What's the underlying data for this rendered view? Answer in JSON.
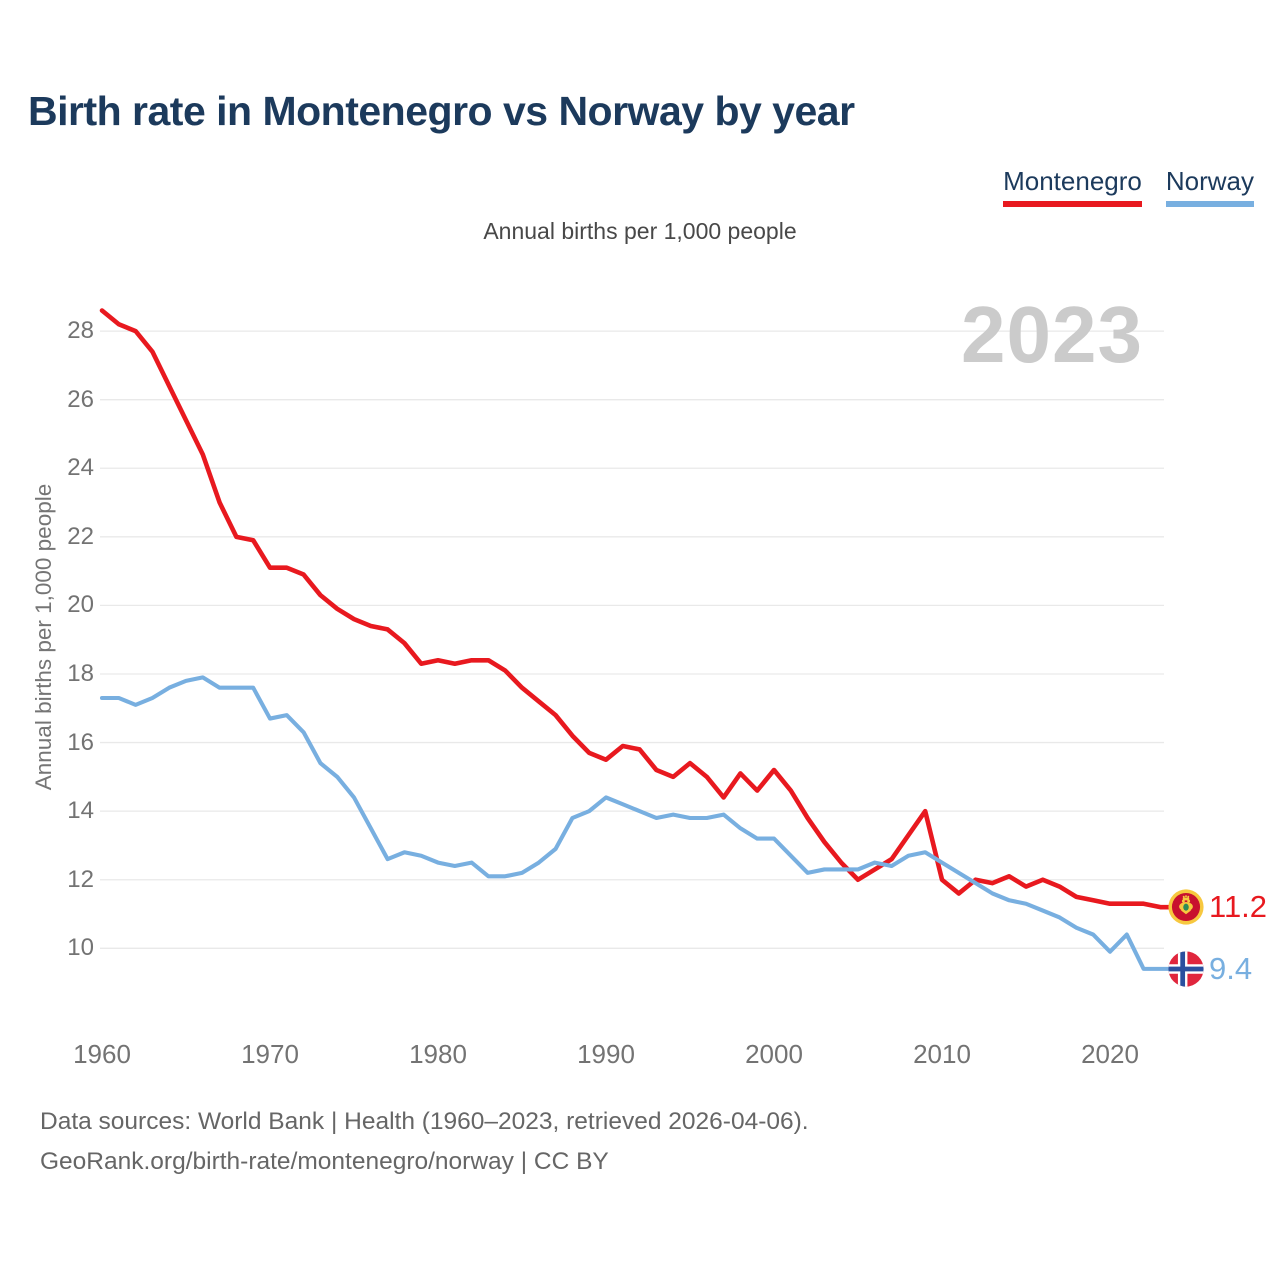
{
  "title": "Birth rate in Montenegro vs Norway by year",
  "subtitle": "Annual births per 1,000 people",
  "watermark": "2023",
  "legend": {
    "items": [
      {
        "label": "Montenegro",
        "color": "#e8191f"
      },
      {
        "label": "Norway",
        "color": "#78afe0"
      }
    ]
  },
  "y_axis": {
    "label": "Annual births per 1,000 people",
    "ticks": [
      28,
      26,
      24,
      22,
      20,
      18,
      16,
      14,
      12,
      10
    ]
  },
  "x_axis": {
    "ticks": [
      1960,
      1970,
      1980,
      1990,
      2000,
      2010,
      2020
    ]
  },
  "end_labels": {
    "montenegro": "11.2",
    "norway": "9.4"
  },
  "icons": {
    "montenegro_marker": "montenegro-flag",
    "norway_marker": "norway-flag"
  },
  "footer": {
    "line1": "Data sources: World Bank | Health (1960–2023, retrieved 2026-04-06).",
    "line2": "GeoRank.org/birth-rate/montenegro/norway | CC BY"
  },
  "chart_data": {
    "type": "line",
    "title": "Birth rate in Montenegro vs Norway by year",
    "ylabel": "Annual births per 1,000 people",
    "xlim": [
      1960,
      2023
    ],
    "ylim": [
      9,
      29
    ],
    "grid": "horizontal-only",
    "legend_position": "top-right",
    "x": [
      1960,
      1961,
      1962,
      1963,
      1964,
      1965,
      1966,
      1967,
      1968,
      1969,
      1970,
      1971,
      1972,
      1973,
      1974,
      1975,
      1976,
      1977,
      1978,
      1979,
      1980,
      1981,
      1982,
      1983,
      1984,
      1985,
      1986,
      1987,
      1988,
      1989,
      1990,
      1991,
      1992,
      1993,
      1994,
      1995,
      1996,
      1997,
      1998,
      1999,
      2000,
      2001,
      2002,
      2003,
      2004,
      2005,
      2006,
      2007,
      2008,
      2009,
      2010,
      2011,
      2012,
      2013,
      2014,
      2015,
      2016,
      2017,
      2018,
      2019,
      2020,
      2021,
      2022,
      2023
    ],
    "series": [
      {
        "name": "Montenegro",
        "color": "#e8191f",
        "end_value": 11.2,
        "values": [
          28.6,
          28.2,
          28.0,
          27.4,
          26.4,
          25.4,
          24.4,
          23.0,
          22.0,
          21.9,
          21.1,
          21.1,
          20.9,
          20.3,
          19.9,
          19.6,
          19.4,
          19.3,
          18.9,
          18.3,
          18.4,
          18.3,
          18.4,
          18.4,
          18.1,
          17.6,
          17.2,
          16.8,
          16.2,
          15.7,
          15.5,
          15.9,
          15.8,
          15.2,
          15.0,
          15.4,
          15.0,
          14.4,
          15.1,
          14.6,
          15.2,
          14.6,
          13.8,
          13.1,
          12.5,
          12.0,
          12.3,
          12.6,
          13.3,
          14.0,
          12.0,
          11.6,
          12.0,
          11.9,
          12.1,
          11.8,
          12.0,
          11.8,
          11.5,
          11.4,
          11.3,
          11.3,
          11.3,
          11.2
        ]
      },
      {
        "name": "Norway",
        "color": "#78afe0",
        "end_value": 9.4,
        "values": [
          17.3,
          17.3,
          17.1,
          17.3,
          17.6,
          17.8,
          17.9,
          17.6,
          17.6,
          17.6,
          16.7,
          16.8,
          16.3,
          15.4,
          15.0,
          14.4,
          13.5,
          12.6,
          12.8,
          12.7,
          12.5,
          12.4,
          12.5,
          12.1,
          12.1,
          12.2,
          12.5,
          12.9,
          13.8,
          14.0,
          14.4,
          14.2,
          14.0,
          13.8,
          13.9,
          13.8,
          13.8,
          13.9,
          13.5,
          13.2,
          13.2,
          12.7,
          12.2,
          12.3,
          12.3,
          12.3,
          12.5,
          12.4,
          12.7,
          12.8,
          12.5,
          12.2,
          11.9,
          11.6,
          11.4,
          11.3,
          11.1,
          10.9,
          10.6,
          10.4,
          9.9,
          10.4,
          9.4,
          9.4
        ]
      }
    ]
  }
}
